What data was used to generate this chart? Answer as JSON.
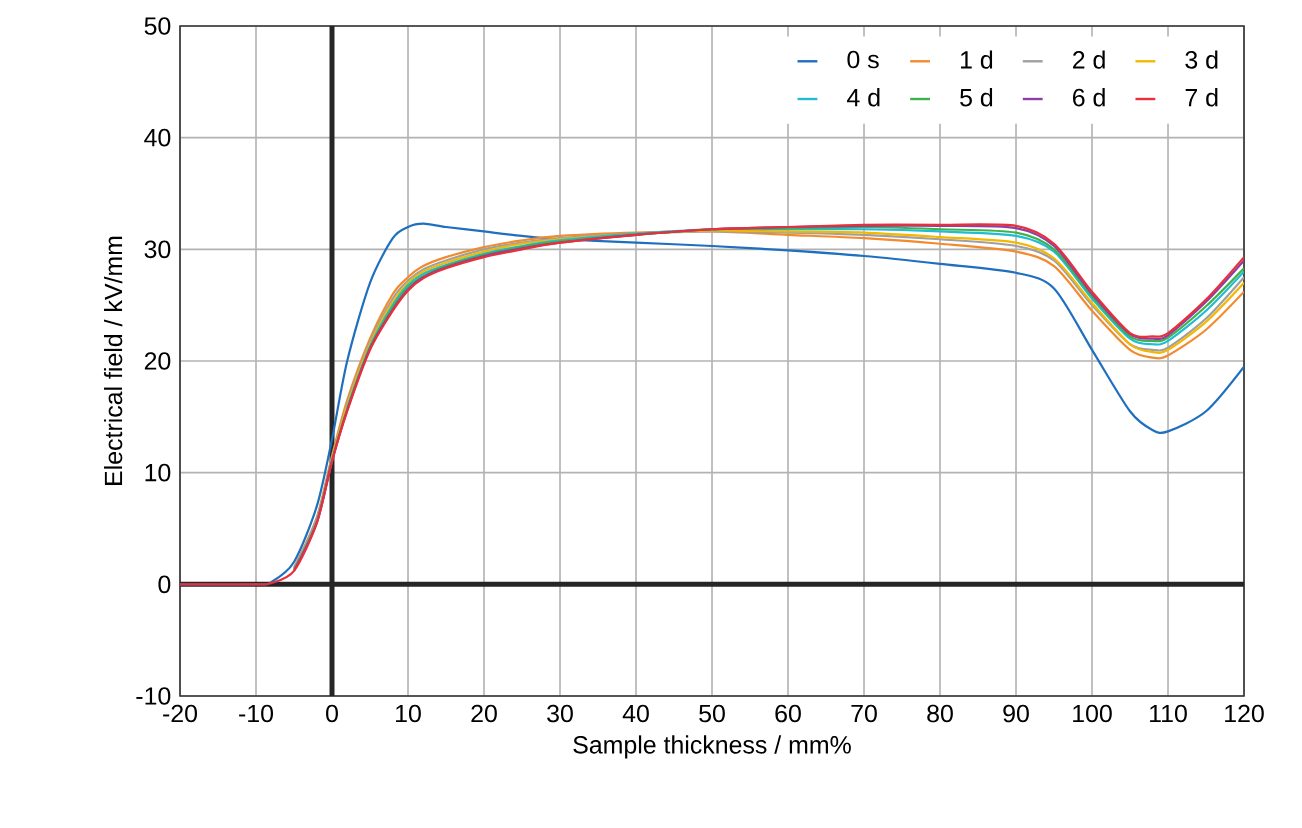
{
  "chart_data": {
    "type": "line",
    "xlabel": "Sample thickness / mm%",
    "ylabel": "Electrical field / kV/mm",
    "x": [
      -20,
      -10,
      -8,
      -5,
      -2,
      0,
      2,
      5,
      8,
      10,
      12,
      15,
      20,
      25,
      30,
      40,
      50,
      60,
      70,
      80,
      90,
      95,
      100,
      105,
      108,
      110,
      115,
      120
    ],
    "series": [
      {
        "name": "0 s",
        "color": "#1f6fbf",
        "values": [
          0,
          0,
          0.2,
          2,
          7,
          13,
          20,
          27,
          31,
          32,
          32.3,
          32,
          31.6,
          31.2,
          30.9,
          30.6,
          30.3,
          29.9,
          29.4,
          28.7,
          27.9,
          26.5,
          21,
          15.5,
          13.8,
          13.7,
          15.5,
          19.5
        ]
      },
      {
        "name": "1 d",
        "color": "#f28a2e",
        "values": [
          null,
          null,
          null,
          1.5,
          6,
          11.5,
          16.5,
          22,
          26,
          27.5,
          28.5,
          29.3,
          30.2,
          30.8,
          31.2,
          31.5,
          31.6,
          31.3,
          31,
          30.5,
          29.8,
          28.5,
          24.5,
          21,
          20.3,
          20.5,
          22.8,
          26.2
        ]
      },
      {
        "name": "2 d",
        "color": "#a0a0a0",
        "values": [
          null,
          null,
          null,
          1.4,
          5.9,
          11.3,
          16.2,
          21.7,
          25.6,
          27.2,
          28.2,
          29,
          30,
          30.6,
          31,
          31.4,
          31.6,
          31.5,
          31.3,
          30.9,
          30.3,
          29,
          25,
          21.5,
          21,
          21.2,
          23.8,
          27.5
        ]
      },
      {
        "name": "3 d",
        "color": "#f5b800",
        "values": [
          null,
          null,
          null,
          null,
          null,
          11.2,
          16,
          21.5,
          25.3,
          27,
          28,
          28.8,
          29.8,
          30.5,
          30.9,
          31.4,
          31.7,
          31.6,
          31.5,
          31.1,
          30.6,
          29.2,
          25.2,
          21.5,
          20.8,
          21,
          23.5,
          27
        ]
      },
      {
        "name": "4 d",
        "color": "#1fbcd2",
        "values": [
          null,
          null,
          null,
          null,
          null,
          null,
          15.8,
          21.3,
          25,
          26.8,
          27.8,
          28.6,
          29.6,
          30.3,
          30.8,
          31.4,
          31.8,
          31.8,
          31.8,
          31.6,
          31.2,
          29.8,
          25.6,
          22,
          21.5,
          21.8,
          24.5,
          28
        ]
      },
      {
        "name": "5 d",
        "color": "#3cb44b",
        "values": [
          null,
          null,
          null,
          1.3,
          5.6,
          11.1,
          15.7,
          21.2,
          24.8,
          26.6,
          27.6,
          28.5,
          29.5,
          30.2,
          30.7,
          31.3,
          31.8,
          31.9,
          32,
          31.8,
          31.5,
          30,
          25.8,
          22.2,
          21.8,
          22.1,
          24.9,
          28.3
        ]
      },
      {
        "name": "6 d",
        "color": "#8e3fa5",
        "values": [
          null,
          null,
          null,
          1.2,
          5.5,
          11,
          15.6,
          21.1,
          24.6,
          26.4,
          27.5,
          28.4,
          29.4,
          30.1,
          30.6,
          31.3,
          31.8,
          32,
          32.1,
          32.1,
          31.9,
          30.3,
          26,
          22.4,
          22,
          22.3,
          25.3,
          29
        ]
      },
      {
        "name": "7 d",
        "color": "#e8303a",
        "values": [
          0,
          0,
          0.1,
          1.2,
          5.5,
          11,
          15.5,
          21,
          24.5,
          26.3,
          27.4,
          28.3,
          29.3,
          30,
          30.6,
          31.3,
          31.8,
          32,
          32.2,
          32.2,
          32.1,
          30.5,
          26.2,
          22.5,
          22.2,
          22.5,
          25.5,
          29.3
        ]
      }
    ],
    "xlim": [
      -20,
      120
    ],
    "xticks": [
      -20,
      -10,
      0,
      10,
      20,
      30,
      40,
      50,
      60,
      70,
      80,
      90,
      100,
      110,
      120
    ],
    "ylim": [
      -10,
      50
    ],
    "yticks": [
      -10,
      0,
      10,
      20,
      30,
      40,
      50
    ],
    "grid": true,
    "legend": "top right",
    "marker": "none",
    "line_style": "solid"
  }
}
